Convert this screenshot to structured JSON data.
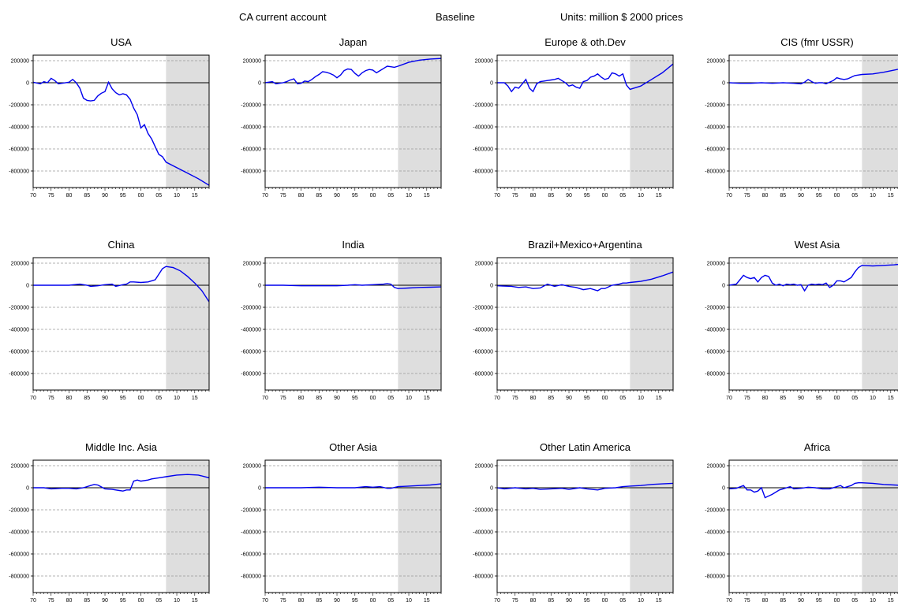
{
  "header": {
    "variable": "CA current account",
    "scenario": "Baseline",
    "units": "Units: million $ 2000 prices"
  },
  "chart_data": {
    "type": "line",
    "layout": "small-multiples 3x4",
    "x_tick_labels": [
      "70",
      "75",
      "80",
      "85",
      "90",
      "95",
      "00",
      "05",
      "10",
      "15"
    ],
    "y_tick_labels": [
      "200000",
      "0",
      "-200000",
      "-400000",
      "-600000",
      "-800000"
    ],
    "x_range": [
      1970,
      2019
    ],
    "y_range": [
      -950000,
      250000
    ],
    "shaded_projection_start": 2007,
    "grid": "horizontal dashed",
    "line_color": "#0000ee",
    "shade_color": "#dedede",
    "panels": [
      {
        "title": "USA",
        "x": [
          1970,
          1972,
          1973,
          1974,
          1975,
          1976,
          1977,
          1978,
          1980,
          1981,
          1982,
          1983,
          1984,
          1985,
          1986,
          1987,
          1988,
          1989,
          1990,
          1991,
          1992,
          1993,
          1994,
          1995,
          1996,
          1997,
          1998,
          1999,
          2000,
          2001,
          2002,
          2003,
          2004,
          2005,
          2006,
          2007,
          2010,
          2013,
          2016,
          2019
        ],
        "y": [
          5000,
          -10000,
          10000,
          0,
          40000,
          20000,
          -10000,
          -5000,
          5000,
          30000,
          0,
          -50000,
          -140000,
          -160000,
          -165000,
          -160000,
          -120000,
          -95000,
          -80000,
          5000,
          -55000,
          -90000,
          -110000,
          -100000,
          -110000,
          -150000,
          -230000,
          -290000,
          -410000,
          -380000,
          -460000,
          -510000,
          -580000,
          -650000,
          -670000,
          -720000,
          -770000,
          -820000,
          -870000,
          -930000
        ]
      },
      {
        "title": "Japan",
        "x": [
          1970,
          1972,
          1973,
          1974,
          1975,
          1976,
          1977,
          1978,
          1979,
          1980,
          1981,
          1982,
          1983,
          1984,
          1985,
          1986,
          1987,
          1988,
          1989,
          1990,
          1991,
          1992,
          1993,
          1994,
          1995,
          1996,
          1997,
          1998,
          1999,
          2000,
          2001,
          2002,
          2003,
          2004,
          2005,
          2006,
          2007,
          2010,
          2013,
          2016,
          2019
        ],
        "y": [
          0,
          10000,
          -10000,
          -5000,
          0,
          10000,
          25000,
          35000,
          -10000,
          -5000,
          15000,
          10000,
          30000,
          55000,
          75000,
          100000,
          95000,
          85000,
          70000,
          45000,
          70000,
          110000,
          125000,
          120000,
          85000,
          60000,
          90000,
          110000,
          120000,
          115000,
          90000,
          110000,
          130000,
          150000,
          145000,
          140000,
          150000,
          185000,
          205000,
          215000,
          220000
        ]
      },
      {
        "title": "Europe & oth.Dev",
        "x": [
          1970,
          1972,
          1973,
          1974,
          1975,
          1976,
          1977,
          1978,
          1979,
          1980,
          1981,
          1982,
          1983,
          1984,
          1985,
          1986,
          1987,
          1988,
          1989,
          1990,
          1991,
          1992,
          1993,
          1994,
          1995,
          1996,
          1997,
          1998,
          1999,
          2000,
          2001,
          2002,
          2003,
          2004,
          2005,
          2006,
          2007,
          2010,
          2013,
          2016,
          2019
        ],
        "y": [
          0,
          0,
          -30000,
          -80000,
          -40000,
          -50000,
          -10000,
          30000,
          -50000,
          -80000,
          -10000,
          10000,
          15000,
          20000,
          25000,
          30000,
          40000,
          20000,
          0,
          -30000,
          -20000,
          -40000,
          -50000,
          10000,
          20000,
          50000,
          60000,
          80000,
          50000,
          30000,
          40000,
          90000,
          80000,
          60000,
          80000,
          -20000,
          -60000,
          -30000,
          30000,
          90000,
          170000
        ]
      },
      {
        "title": "CIS (fmr USSR)",
        "x": [
          1970,
          1973,
          1976,
          1979,
          1982,
          1985,
          1988,
          1990,
          1991,
          1992,
          1993,
          1994,
          1995,
          1996,
          1997,
          1998,
          1999,
          2000,
          2001,
          2002,
          2003,
          2004,
          2005,
          2006,
          2007,
          2010,
          2013,
          2016,
          2019
        ],
        "y": [
          0,
          -5000,
          -5000,
          0,
          -5000,
          0,
          -5000,
          -10000,
          5000,
          30000,
          10000,
          -5000,
          0,
          0,
          -10000,
          5000,
          20000,
          45000,
          35000,
          30000,
          35000,
          50000,
          65000,
          70000,
          75000,
          80000,
          95000,
          115000,
          135000
        ]
      },
      {
        "title": "China",
        "x": [
          1970,
          1975,
          1980,
          1983,
          1985,
          1986,
          1988,
          1990,
          1992,
          1993,
          1995,
          1996,
          1997,
          1998,
          2000,
          2002,
          2003,
          2004,
          2005,
          2006,
          2007,
          2009,
          2011,
          2013,
          2015,
          2017,
          2019
        ],
        "y": [
          0,
          0,
          0,
          10000,
          0,
          -10000,
          -5000,
          5000,
          10000,
          -10000,
          5000,
          10000,
          30000,
          30000,
          25000,
          30000,
          40000,
          50000,
          100000,
          150000,
          170000,
          160000,
          130000,
          80000,
          20000,
          -50000,
          -150000
        ]
      },
      {
        "title": "India",
        "x": [
          1970,
          1975,
          1980,
          1985,
          1990,
          1993,
          1995,
          1997,
          2000,
          2003,
          2004,
          2005,
          2006,
          2007,
          2010,
          2013,
          2016,
          2019
        ],
        "y": [
          0,
          0,
          -5000,
          -5000,
          -5000,
          0,
          5000,
          0,
          5000,
          10000,
          15000,
          10000,
          -20000,
          -30000,
          -25000,
          -20000,
          -18000,
          -15000
        ]
      },
      {
        "title": "Brazil+Mexico+Argentina",
        "x": [
          1970,
          1974,
          1976,
          1978,
          1980,
          1982,
          1984,
          1986,
          1988,
          1990,
          1992,
          1994,
          1996,
          1998,
          1999,
          2000,
          2002,
          2004,
          2005,
          2006,
          2007,
          2010,
          2013,
          2016,
          2019
        ],
        "y": [
          -5000,
          -10000,
          -20000,
          -15000,
          -30000,
          -25000,
          10000,
          -10000,
          5000,
          -10000,
          -20000,
          -40000,
          -30000,
          -50000,
          -30000,
          -30000,
          0,
          10000,
          20000,
          20000,
          25000,
          35000,
          55000,
          85000,
          120000
        ]
      },
      {
        "title": "West Asia",
        "x": [
          1970,
          1972,
          1973,
          1974,
          1975,
          1976,
          1977,
          1978,
          1979,
          1980,
          1981,
          1982,
          1983,
          1984,
          1985,
          1986,
          1987,
          1988,
          1989,
          1990,
          1991,
          1992,
          1993,
          1994,
          1995,
          1996,
          1997,
          1998,
          1999,
          2000,
          2001,
          2002,
          2003,
          2004,
          2005,
          2006,
          2007,
          2010,
          2013,
          2016,
          2019
        ],
        "y": [
          0,
          10000,
          50000,
          90000,
          70000,
          60000,
          70000,
          30000,
          70000,
          90000,
          80000,
          20000,
          0,
          10000,
          -5000,
          10000,
          5000,
          10000,
          0,
          5000,
          -50000,
          0,
          10000,
          5000,
          10000,
          5000,
          20000,
          -20000,
          0,
          40000,
          40000,
          30000,
          50000,
          70000,
          120000,
          160000,
          180000,
          175000,
          180000,
          185000,
          195000
        ]
      },
      {
        "title": "Middle Inc. Asia",
        "x": [
          1970,
          1973,
          1975,
          1978,
          1980,
          1982,
          1984,
          1986,
          1987,
          1988,
          1990,
          1992,
          1994,
          1995,
          1996,
          1997,
          1998,
          1999,
          2000,
          2002,
          2003,
          2005,
          2007,
          2010,
          2013,
          2016,
          2019
        ],
        "y": [
          0,
          0,
          -10000,
          -5000,
          -5000,
          -10000,
          0,
          20000,
          30000,
          25000,
          -10000,
          -15000,
          -25000,
          -30000,
          -20000,
          -20000,
          60000,
          70000,
          60000,
          70000,
          80000,
          90000,
          100000,
          115000,
          120000,
          115000,
          90000
        ]
      },
      {
        "title": "Other Asia",
        "x": [
          1970,
          1975,
          1980,
          1985,
          1990,
          1995,
          1998,
          2000,
          2002,
          2004,
          2005,
          2007,
          2010,
          2013,
          2016,
          2019
        ],
        "y": [
          0,
          0,
          0,
          5000,
          0,
          0,
          10000,
          5000,
          10000,
          -5000,
          -5000,
          10000,
          15000,
          20000,
          25000,
          35000
        ]
      },
      {
        "title": "Other Latin America",
        "x": [
          1970,
          1972,
          1975,
          1978,
          1980,
          1982,
          1985,
          1988,
          1990,
          1993,
          1995,
          1998,
          2000,
          2003,
          2005,
          2007,
          2010,
          2013,
          2016,
          2019
        ],
        "y": [
          0,
          -10000,
          0,
          -10000,
          -5000,
          -15000,
          -10000,
          -5000,
          -15000,
          0,
          -10000,
          -20000,
          -5000,
          0,
          10000,
          15000,
          20000,
          30000,
          35000,
          40000
        ]
      },
      {
        "title": "Africa",
        "x": [
          1970,
          1972,
          1974,
          1975,
          1976,
          1977,
          1978,
          1979,
          1980,
          1982,
          1984,
          1985,
          1986,
          1987,
          1988,
          1990,
          1992,
          1994,
          1996,
          1998,
          2000,
          2001,
          2002,
          2003,
          2004,
          2005,
          2006,
          2007,
          2010,
          2013,
          2016,
          2019
        ],
        "y": [
          -10000,
          -5000,
          20000,
          -20000,
          -20000,
          -40000,
          -30000,
          0,
          -90000,
          -60000,
          -20000,
          -10000,
          0,
          10000,
          -10000,
          -5000,
          5000,
          0,
          -10000,
          -10000,
          10000,
          20000,
          0,
          10000,
          20000,
          40000,
          45000,
          45000,
          40000,
          30000,
          25000,
          20000
        ]
      }
    ]
  }
}
